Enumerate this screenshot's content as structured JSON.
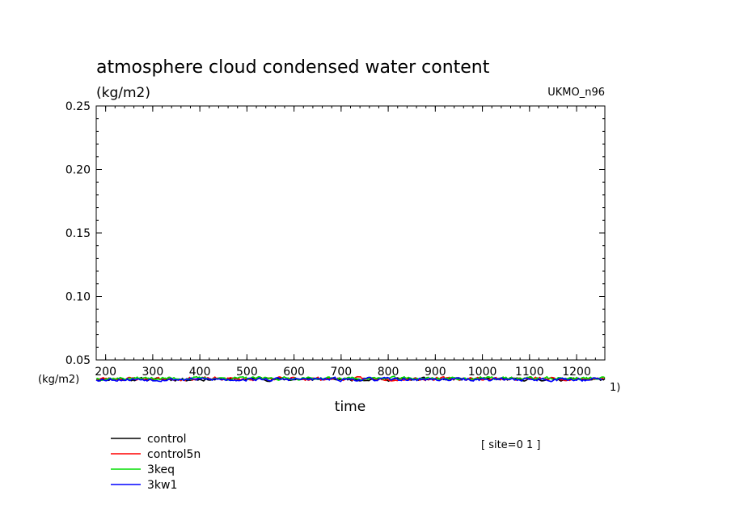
{
  "chart_data": {
    "type": "line",
    "title": "atmosphere cloud condensed water content",
    "units_label": "(kg/m2)",
    "model_label": "UKMO_n96",
    "xlabel": "time",
    "xunits_label": "(kg/m2)",
    "overflow_label": "1)",
    "site_label": "[ site=0 1 ]",
    "xlim": [
      180,
      1260
    ],
    "ylim": [
      0.05,
      0.25
    ],
    "yticks": [
      "0.25",
      "0.20",
      "0.15",
      "0.10",
      "0.05"
    ],
    "ytick_values": [
      0.25,
      0.2,
      0.15,
      0.1,
      0.05
    ],
    "xticks": [
      "200",
      "300",
      "400",
      "500",
      "600",
      "700",
      "800",
      "900",
      "1000",
      "1100",
      "1200"
    ],
    "xtick_values": [
      200,
      300,
      400,
      500,
      600,
      700,
      800,
      900,
      1000,
      1100,
      1200
    ],
    "series_y_level": 0.035,
    "series": [
      {
        "name": "control",
        "color": "#000000",
        "x_start": 180,
        "x_end": 1260,
        "mean": 0.0348,
        "amplitude": 0.0012,
        "seed": 11
      },
      {
        "name": "control5n",
        "color": "#ff0000",
        "x_start": 180,
        "x_end": 1260,
        "mean": 0.0352,
        "amplitude": 0.0013,
        "seed": 23
      },
      {
        "name": "3keq",
        "color": "#00dd00",
        "x_start": 180,
        "x_end": 1260,
        "mean": 0.0355,
        "amplitude": 0.0012,
        "seed": 37
      },
      {
        "name": "3kw1",
        "color": "#0000ff",
        "x_start": 180,
        "x_end": 1255,
        "mean": 0.0347,
        "amplitude": 0.0013,
        "seed": 53
      }
    ]
  }
}
